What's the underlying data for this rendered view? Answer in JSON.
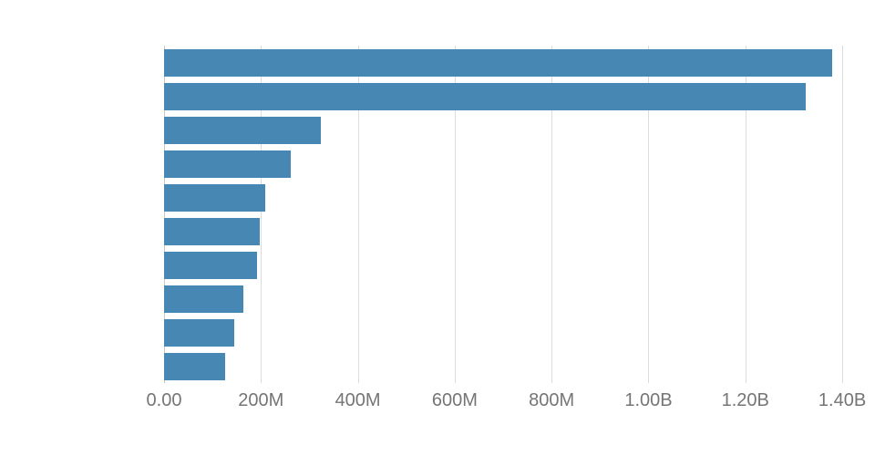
{
  "chart_data": {
    "type": "bar",
    "orientation": "horizontal",
    "title": "",
    "xlabel": "",
    "ylabel": "",
    "categories": [
      "",
      "",
      "",
      "",
      "",
      "",
      "",
      "",
      "",
      ""
    ],
    "values": [
      1380000000,
      1324000000,
      323000000,
      261000000,
      208000000,
      197000000,
      191000000,
      163000000,
      144000000,
      127000000
    ],
    "x_ticks": [
      {
        "value": 0,
        "label": "0.00"
      },
      {
        "value": 200000000,
        "label": "200M"
      },
      {
        "value": 400000000,
        "label": "400M"
      },
      {
        "value": 600000000,
        "label": "600M"
      },
      {
        "value": 800000000,
        "label": "800M"
      },
      {
        "value": 1000000000,
        "label": "1.00B"
      },
      {
        "value": 1200000000,
        "label": "1.20B"
      },
      {
        "value": 1400000000,
        "label": "1.40B"
      }
    ],
    "xlim": [
      0,
      1430000000
    ],
    "grid": true,
    "legend": false,
    "bar_color": "#4787b4",
    "gridline_color": "#dcdcdc",
    "axis_label_color": "#757575"
  }
}
